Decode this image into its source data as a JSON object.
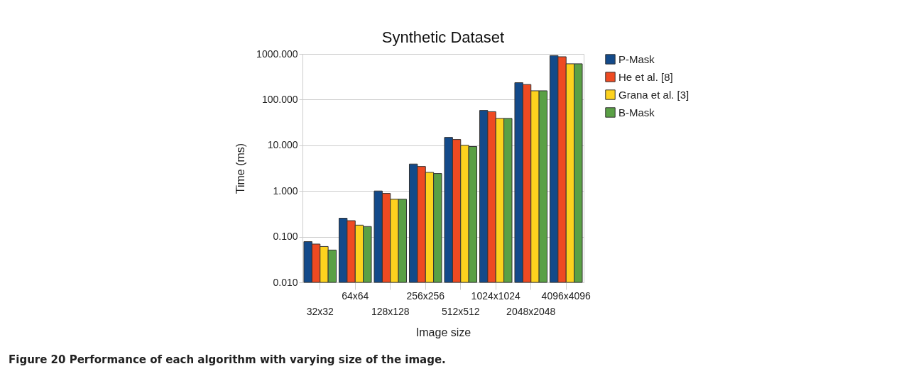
{
  "chart_data": {
    "type": "bar",
    "title": "Synthetic Dataset",
    "xlabel": "Image size",
    "ylabel": "Time (ms)",
    "categories": [
      "32x32",
      "64x64",
      "128x128",
      "256x256",
      "512x512",
      "1024x1024",
      "2048x2048",
      "4096x4096"
    ],
    "series": [
      {
        "name": "P-Mask",
        "color": "#134a8a",
        "values": [
          0.078,
          0.254,
          1.0,
          3.89,
          14.9,
          58,
          235,
          921
        ]
      },
      {
        "name": "He et al. [8]",
        "color": "#ee4a22",
        "values": [
          0.069,
          0.224,
          0.885,
          3.44,
          13.4,
          54.5,
          214,
          867
        ]
      },
      {
        "name": "Grana et al. [3]",
        "color": "#fdd21e",
        "values": [
          0.061,
          0.179,
          0.66,
          2.56,
          10,
          38.8,
          156,
          608
        ]
      },
      {
        "name": "B-Mask",
        "color": "#5aa045",
        "values": [
          0.051,
          0.167,
          0.66,
          2.41,
          9.4,
          38.8,
          156,
          608
        ]
      }
    ],
    "log": true,
    "ylim": [
      0.01,
      1000
    ],
    "yticks": [
      {
        "value": 0.01,
        "label": "0.010"
      },
      {
        "value": 0.1,
        "label": "0.100"
      },
      {
        "value": 1,
        "label": "1.000"
      },
      {
        "value": 10,
        "label": "10.000"
      },
      {
        "value": 100,
        "label": "100.000"
      },
      {
        "value": 1000,
        "label": "1000.000"
      }
    ],
    "grid": "y",
    "legend": "right",
    "annotations": [
      "Figure 20 Performance of each algorithm with varying size of the image."
    ]
  }
}
